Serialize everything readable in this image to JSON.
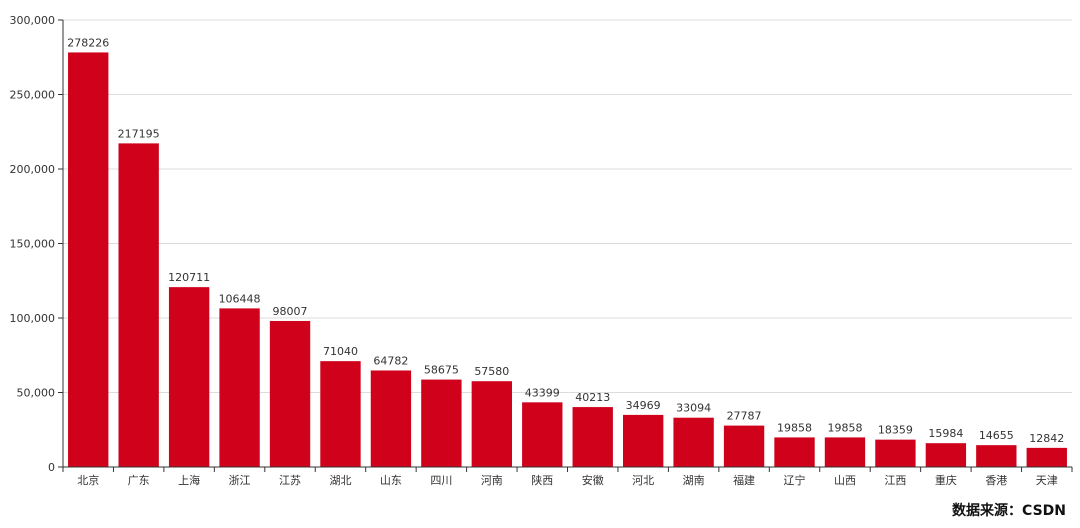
{
  "chart_data": {
    "type": "bar",
    "categories": [
      "北京",
      "广东",
      "上海",
      "浙江",
      "江苏",
      "湖北",
      "山东",
      "四川",
      "河南",
      "陕西",
      "安徽",
      "河北",
      "湖南",
      "福建",
      "辽宁",
      "山西",
      "江西",
      "重庆",
      "香港",
      "天津"
    ],
    "values": [
      278226,
      217195,
      120711,
      106448,
      98007,
      71040,
      64782,
      58675,
      57580,
      43399,
      40213,
      34969,
      33094,
      27787,
      19858,
      19858,
      18359,
      15984,
      14655,
      12842
    ],
    "ylim": [
      0,
      300000
    ],
    "yticks": [
      "0",
      "50,000",
      "100,000",
      "150,000",
      "200,000",
      "250,000",
      "300,000"
    ],
    "grid": true,
    "bar_color": "#d0021b"
  },
  "source_note": "数据来源：CSDN"
}
